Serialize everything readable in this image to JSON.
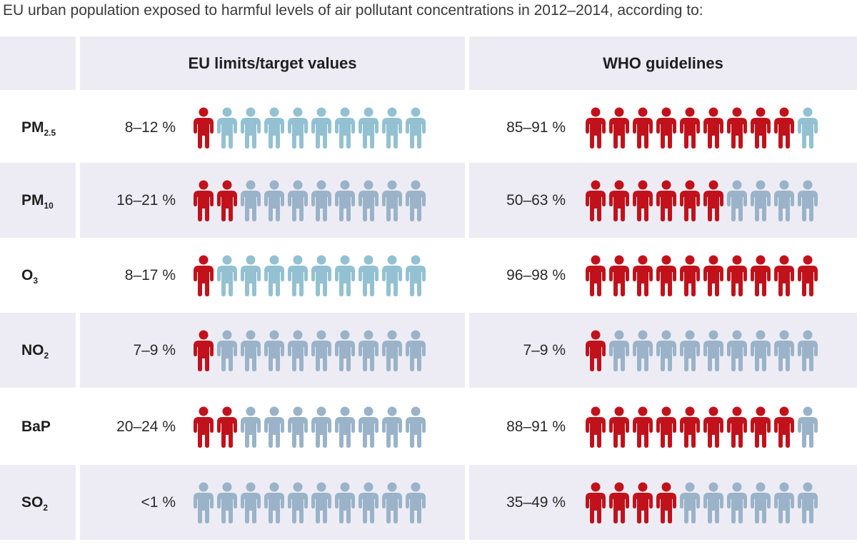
{
  "title": "EU urban population exposed to harmful levels of air pollutant concentrations in 2012–2014, according to:",
  "colors": {
    "exposed": "#c1121b",
    "not_exposed_light": "#93c1d1",
    "not_exposed_grey": "#9ab3c8",
    "header_bg": "#edecf5"
  },
  "icon": "person-icon",
  "chart_data": {
    "type": "table",
    "title": "EU urban population exposed to harmful levels of air pollutant concentrations in 2012–2014, according to:",
    "columns": [
      "EU limits/target values",
      "WHO guidelines"
    ],
    "icons_per_row": 10,
    "rows": [
      {
        "pollutant": "PM",
        "sub": "2.5",
        "eu": {
          "label": "8–12 %",
          "icons_red": 1
        },
        "who": {
          "label": "85–91 %",
          "icons_red": 9
        }
      },
      {
        "pollutant": "PM",
        "sub": "10",
        "eu": {
          "label": "16–21 %",
          "icons_red": 2
        },
        "who": {
          "label": "50–63 %",
          "icons_red": 6
        }
      },
      {
        "pollutant": "O",
        "sub": "3",
        "eu": {
          "label": "8–17 %",
          "icons_red": 1
        },
        "who": {
          "label": "96–98 %",
          "icons_red": 10
        }
      },
      {
        "pollutant": "NO",
        "sub": "2",
        "eu": {
          "label": "7–9 %",
          "icons_red": 1
        },
        "who": {
          "label": "7–9 %",
          "icons_red": 1
        }
      },
      {
        "pollutant": "BaP",
        "sub": "",
        "eu": {
          "label": "20–24 %",
          "icons_red": 2
        },
        "who": {
          "label": "88–91 %",
          "icons_red": 9
        }
      },
      {
        "pollutant": "SO",
        "sub": "2",
        "eu": {
          "label": "<1 %",
          "icons_red": 0
        },
        "who": {
          "label": "35–49 %",
          "icons_red": 4
        }
      }
    ]
  }
}
